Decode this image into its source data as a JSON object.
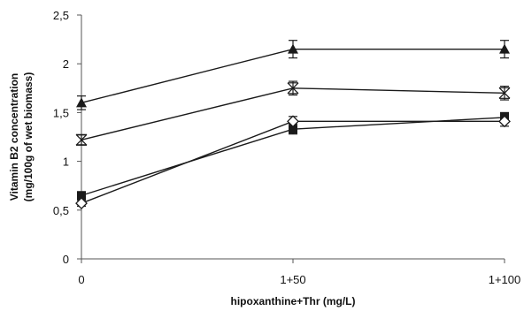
{
  "chart_data": {
    "type": "line",
    "title": "",
    "xlabel": "hipoxanthine+Thr  (mg/L)",
    "ylabel_lines": [
      "Vitamin B2 concentration",
      "(mg/100g of wet biomass)"
    ],
    "categories": [
      "0",
      "1+50",
      "1+100"
    ],
    "ylim": [
      0,
      2.5
    ],
    "yticks": [
      "0",
      "0,5",
      "1",
      "1,5",
      "2",
      "2,5"
    ],
    "ytick_values": [
      0,
      0.5,
      1,
      1.5,
      2,
      2.5
    ],
    "grid": false,
    "legend": "none",
    "series": [
      {
        "marker": "triangle",
        "values": [
          1.6,
          2.15,
          2.15
        ],
        "errors": [
          0.07,
          0.09,
          0.09
        ]
      },
      {
        "marker": "x-box",
        "values": [
          1.22,
          1.75,
          1.7
        ],
        "errors": [
          0.05,
          0.07,
          0.07
        ]
      },
      {
        "marker": "square",
        "values": [
          0.65,
          1.33,
          1.45
        ],
        "errors": [
          0.03,
          0.05,
          0.05
        ]
      },
      {
        "marker": "diamond-open",
        "values": [
          0.57,
          1.41,
          1.41
        ],
        "errors": [
          0.03,
          0.05,
          0.05
        ]
      }
    ],
    "colors": {
      "line": "#1a1a1a",
      "axis": "#555555"
    }
  }
}
